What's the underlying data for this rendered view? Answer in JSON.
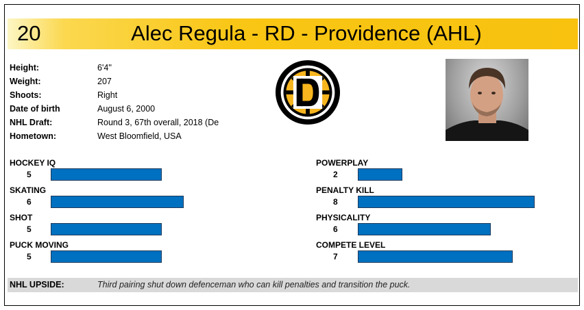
{
  "player": {
    "number": "20",
    "title": "Alec Regula - RD - Providence (AHL)"
  },
  "bio": [
    {
      "label": "Height:",
      "value": "6'4''"
    },
    {
      "label": "Weight:",
      "value": "207"
    },
    {
      "label": "Shoots:",
      "value": "Right"
    },
    {
      "label": "Date of birth",
      "value": "August 6, 2000"
    },
    {
      "label": "NHL Draft:",
      "value": "Round 3, 67th overall, 2018 (De"
    },
    {
      "label": "Hometown:",
      "value": "West Bloomfield, USA"
    }
  ],
  "logo": {
    "letter": "D",
    "colors": {
      "black": "#000000",
      "gold": "#f7b51e",
      "white": "#ffffff"
    }
  },
  "skills_left": [
    {
      "name": "HOCKEY IQ",
      "score": "5",
      "value": 5
    },
    {
      "name": "SKATING",
      "score": "6",
      "value": 6
    },
    {
      "name": "SHOT",
      "score": "5",
      "value": 5
    },
    {
      "name": "PUCK MOVING",
      "score": "5",
      "value": 5
    }
  ],
  "skills_right": [
    {
      "name": "POWERPLAY",
      "score": "2",
      "value": 2
    },
    {
      "name": "PENALTY KILL",
      "score": "8",
      "value": 8
    },
    {
      "name": "PHYSICALITY",
      "score": "6",
      "value": 6
    },
    {
      "name": "COMPETE LEVEL",
      "score": "7",
      "value": 7
    }
  ],
  "upside": {
    "label": "NHL UPSIDE:",
    "text": "Third pairing shut down defenceman who can kill penalties and transition the puck."
  },
  "colors": {
    "bar": "#0070c0",
    "banner": "#f9c615"
  }
}
